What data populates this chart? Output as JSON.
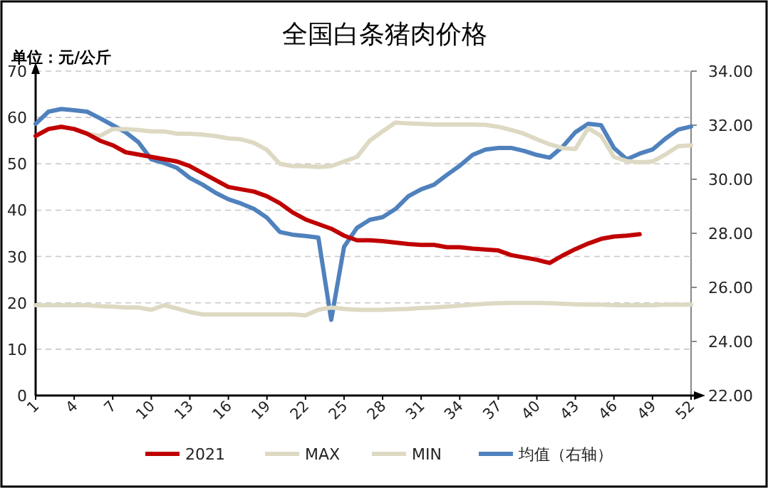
{
  "chart_data": {
    "type": "line",
    "title": "全国白条猪肉价格",
    "ylabel": "单位：元/公斤",
    "categories": [
      "1",
      null,
      null,
      "4",
      null,
      null,
      "7",
      null,
      null,
      "10",
      null,
      null,
      "13",
      null,
      null,
      "16",
      null,
      null,
      "19",
      null,
      null,
      "22",
      null,
      null,
      "25",
      null,
      null,
      "28",
      null,
      null,
      "31",
      null,
      null,
      "34",
      null,
      null,
      "37",
      null,
      null,
      "40",
      null,
      null,
      "43",
      null,
      null,
      "46",
      null,
      null,
      "49",
      null,
      null,
      "52"
    ],
    "series": [
      {
        "name": "2021",
        "color": "#c00000",
        "values": [
          56,
          57.5,
          58,
          57.5,
          56.5,
          55,
          54,
          52.5,
          52,
          51.5,
          51,
          50.5,
          49.5,
          48,
          46.5,
          45,
          44.5,
          44,
          43,
          41.5,
          39.5,
          38,
          37,
          36,
          34.5,
          33.5,
          33.5,
          33.3,
          33,
          32.7,
          32.5,
          32.5,
          32,
          32,
          31.7,
          31.5,
          31.3,
          30.3,
          29.8,
          29.3,
          28.6,
          30.2,
          31.6,
          32.8,
          33.8,
          34.3,
          34.5,
          34.8,
          null,
          null,
          null,
          null
        ]
      },
      {
        "name": "MAX",
        "color": "#ddd9c3",
        "values": [
          56,
          57.5,
          58,
          57.5,
          56.5,
          56,
          57.5,
          57.5,
          57.3,
          57,
          57,
          56.5,
          56.5,
          56.3,
          56,
          55.5,
          55.3,
          54.5,
          53,
          50,
          49.5,
          49.5,
          49.3,
          49.5,
          50.5,
          51.5,
          55,
          57,
          58.9,
          58.7,
          58.6,
          58.5,
          58.5,
          58.5,
          58.5,
          58.4,
          58,
          57.3,
          56.5,
          55.3,
          54.2,
          53.4,
          53.2,
          57.7,
          56,
          51.5,
          50.6,
          50.3,
          50.5,
          52,
          53.8,
          54
        ]
      },
      {
        "name": "MIN",
        "color": "#ddd9c3",
        "values": [
          19.5,
          19.5,
          19.5,
          19.5,
          19.5,
          19.3,
          19.2,
          19,
          19,
          18.5,
          19.5,
          18.8,
          18,
          17.5,
          17.5,
          17.5,
          17.5,
          17.5,
          17.5,
          17.5,
          17.5,
          17.3,
          18.5,
          19,
          18.7,
          18.5,
          18.5,
          18.5,
          18.6,
          18.7,
          18.9,
          19,
          19.2,
          19.4,
          19.6,
          19.8,
          19.9,
          20,
          20,
          20,
          19.9,
          19.8,
          19.7,
          19.6,
          19.6,
          19.5,
          19.5,
          19.5,
          19.5,
          19.6,
          19.6,
          19.6
        ]
      },
      {
        "name": "均值（右轴）",
        "color": "#4f81bd",
        "axis": "y2",
        "values": [
          32.05,
          32.5,
          32.6,
          32.55,
          32.5,
          32.26,
          32,
          31.74,
          31.37,
          30.74,
          30.6,
          30.42,
          30.05,
          29.8,
          29.5,
          29.26,
          29.1,
          28.9,
          28.58,
          28.05,
          27.95,
          27.9,
          27.84,
          24.8,
          27.5,
          28.2,
          28.5,
          28.6,
          28.9,
          29.37,
          29.63,
          29.8,
          30.16,
          30.5,
          30.9,
          31.1,
          31.16,
          31.16,
          31.05,
          30.9,
          30.8,
          31.2,
          31.74,
          32.05,
          32,
          31.16,
          30.74,
          30.95,
          31.1,
          31.5,
          31.84,
          31.95
        ]
      }
    ],
    "ylim": [
      0,
      70
    ],
    "yticks": [
      0,
      10,
      20,
      30,
      40,
      50,
      60,
      70
    ],
    "y2lim": [
      22,
      34
    ],
    "y2ticks": [
      {
        "value": 22,
        "label": "22.00"
      },
      {
        "value": 24,
        "label": "24.00"
      },
      {
        "value": 26,
        "label": "26.00"
      },
      {
        "value": 28,
        "label": "28.00"
      },
      {
        "value": 30,
        "label": "30.00"
      },
      {
        "value": 32,
        "label": "32.00"
      },
      {
        "value": 34,
        "label": "34.00"
      }
    ],
    "grid": "y",
    "legend": "bottom"
  }
}
